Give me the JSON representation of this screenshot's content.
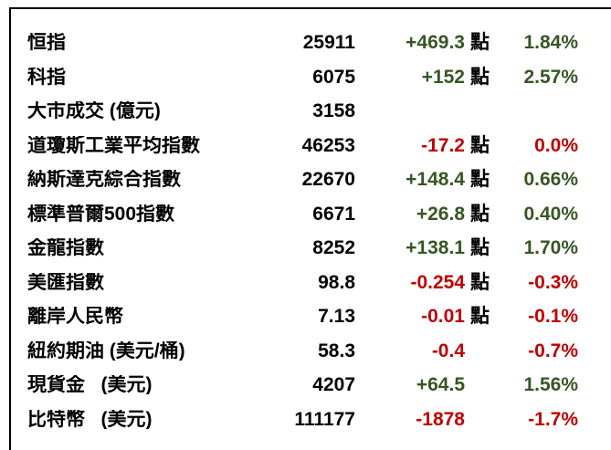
{
  "colors": {
    "up": "#375623",
    "down": "#C00000",
    "neutral": "#000000",
    "border": "#000000",
    "background": "#ffffff"
  },
  "chart_data": {
    "type": "table",
    "rows": [
      {
        "name": "恒指",
        "value": "25911",
        "change": "+469.3",
        "unit": "點",
        "pct": "1.84%",
        "direction": "up"
      },
      {
        "name": "科指",
        "value": "6075",
        "change": "+152",
        "unit": "點",
        "pct": "2.57%",
        "direction": "up"
      },
      {
        "name": "大市成交 (億元)",
        "value": "3158",
        "change": "",
        "unit": "",
        "pct": "",
        "direction": "neutral"
      },
      {
        "name": "道瓊斯工業平均指數",
        "value": "46253",
        "change": "-17.2",
        "unit": "點",
        "pct": "0.0%",
        "direction": "down"
      },
      {
        "name": "納斯達克綜合指數",
        "value": "22670",
        "change": "+148.4",
        "unit": "點",
        "pct": "0.66%",
        "direction": "up"
      },
      {
        "name": "標準普爾500指數",
        "value": "6671",
        "change": "+26.8",
        "unit": "點",
        "pct": "0.40%",
        "direction": "up"
      },
      {
        "name": "金龍指數",
        "value": "8252",
        "change": "+138.1",
        "unit": "點",
        "pct": "1.70%",
        "direction": "up"
      },
      {
        "name": "美匯指數",
        "value": "98.8",
        "change": "-0.254",
        "unit": "點",
        "pct": "-0.3%",
        "direction": "down"
      },
      {
        "name": "離岸人民幣",
        "value": "7.13",
        "change": "-0.01",
        "unit": "點",
        "pct": "-0.1%",
        "direction": "down"
      },
      {
        "name": "紐約期油 (美元/桶)",
        "value": "58.3",
        "change": "-0.4",
        "unit": "",
        "pct": "-0.7%",
        "direction": "down"
      },
      {
        "name": "現貨金   (美元)",
        "value": "4207",
        "change": "+64.5",
        "unit": "",
        "pct": "1.56%",
        "direction": "up"
      },
      {
        "name": "比特幣   (美元)",
        "value": "111177",
        "change": "-1878",
        "unit": "",
        "pct": "-1.7%",
        "direction": "down"
      }
    ]
  }
}
